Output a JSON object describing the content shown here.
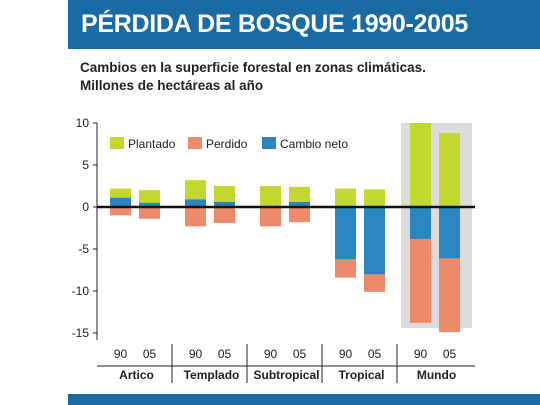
{
  "title": "PÉRDIDA DE BOSQUE 1990-2005",
  "subtitle_lines": [
    "Cambios en la superficie forestal en zonas climáticas.",
    "Millones de hectáreas al año"
  ],
  "colors": {
    "header": "#1a6aa4",
    "plantado": "#c3d82e",
    "perdido": "#ee8a6c",
    "cambio_neto": "#2a86c0",
    "highlight": "#dcdcdc"
  },
  "chart_data": {
    "type": "bar",
    "title": "",
    "ylim": [
      -15,
      10
    ],
    "yticks": [
      10,
      5,
      0,
      -5,
      -10,
      -15
    ],
    "grid": false,
    "legend": "top-left",
    "legend_entries": [
      "Plantado",
      "Perdido",
      "Cambio neto"
    ],
    "groups": [
      {
        "name": "Artico",
        "years": [
          "90",
          "05"
        ],
        "highlighted": false,
        "plantado": [
          2.2,
          2.0
        ],
        "perdido": [
          -1.0,
          -1.4
        ],
        "cambio_neto": [
          1.1,
          0.5
        ]
      },
      {
        "name": "Templado",
        "years": [
          "90",
          "05"
        ],
        "highlighted": false,
        "plantado": [
          3.2,
          2.5
        ],
        "perdido": [
          -2.3,
          -1.9
        ],
        "cambio_neto": [
          0.9,
          0.6
        ]
      },
      {
        "name": "Subtropical",
        "years": [
          "90",
          "05"
        ],
        "highlighted": false,
        "plantado": [
          2.5,
          2.4
        ],
        "perdido": [
          -2.3,
          -1.8
        ],
        "cambio_neto": [
          0.1,
          0.6
        ]
      },
      {
        "name": "Tropical",
        "years": [
          "90",
          "05"
        ],
        "highlighted": false,
        "plantado": [
          2.2,
          2.1
        ],
        "perdido": [
          -8.4,
          -10.1
        ],
        "cambio_neto": [
          -6.2,
          -8.0
        ]
      },
      {
        "name": "Mundo",
        "years": [
          "90",
          "05"
        ],
        "highlighted": true,
        "plantado": [
          10.0,
          8.8
        ],
        "perdido": [
          -13.8,
          -14.9
        ],
        "cambio_neto": [
          -3.8,
          -6.1
        ]
      }
    ]
  }
}
